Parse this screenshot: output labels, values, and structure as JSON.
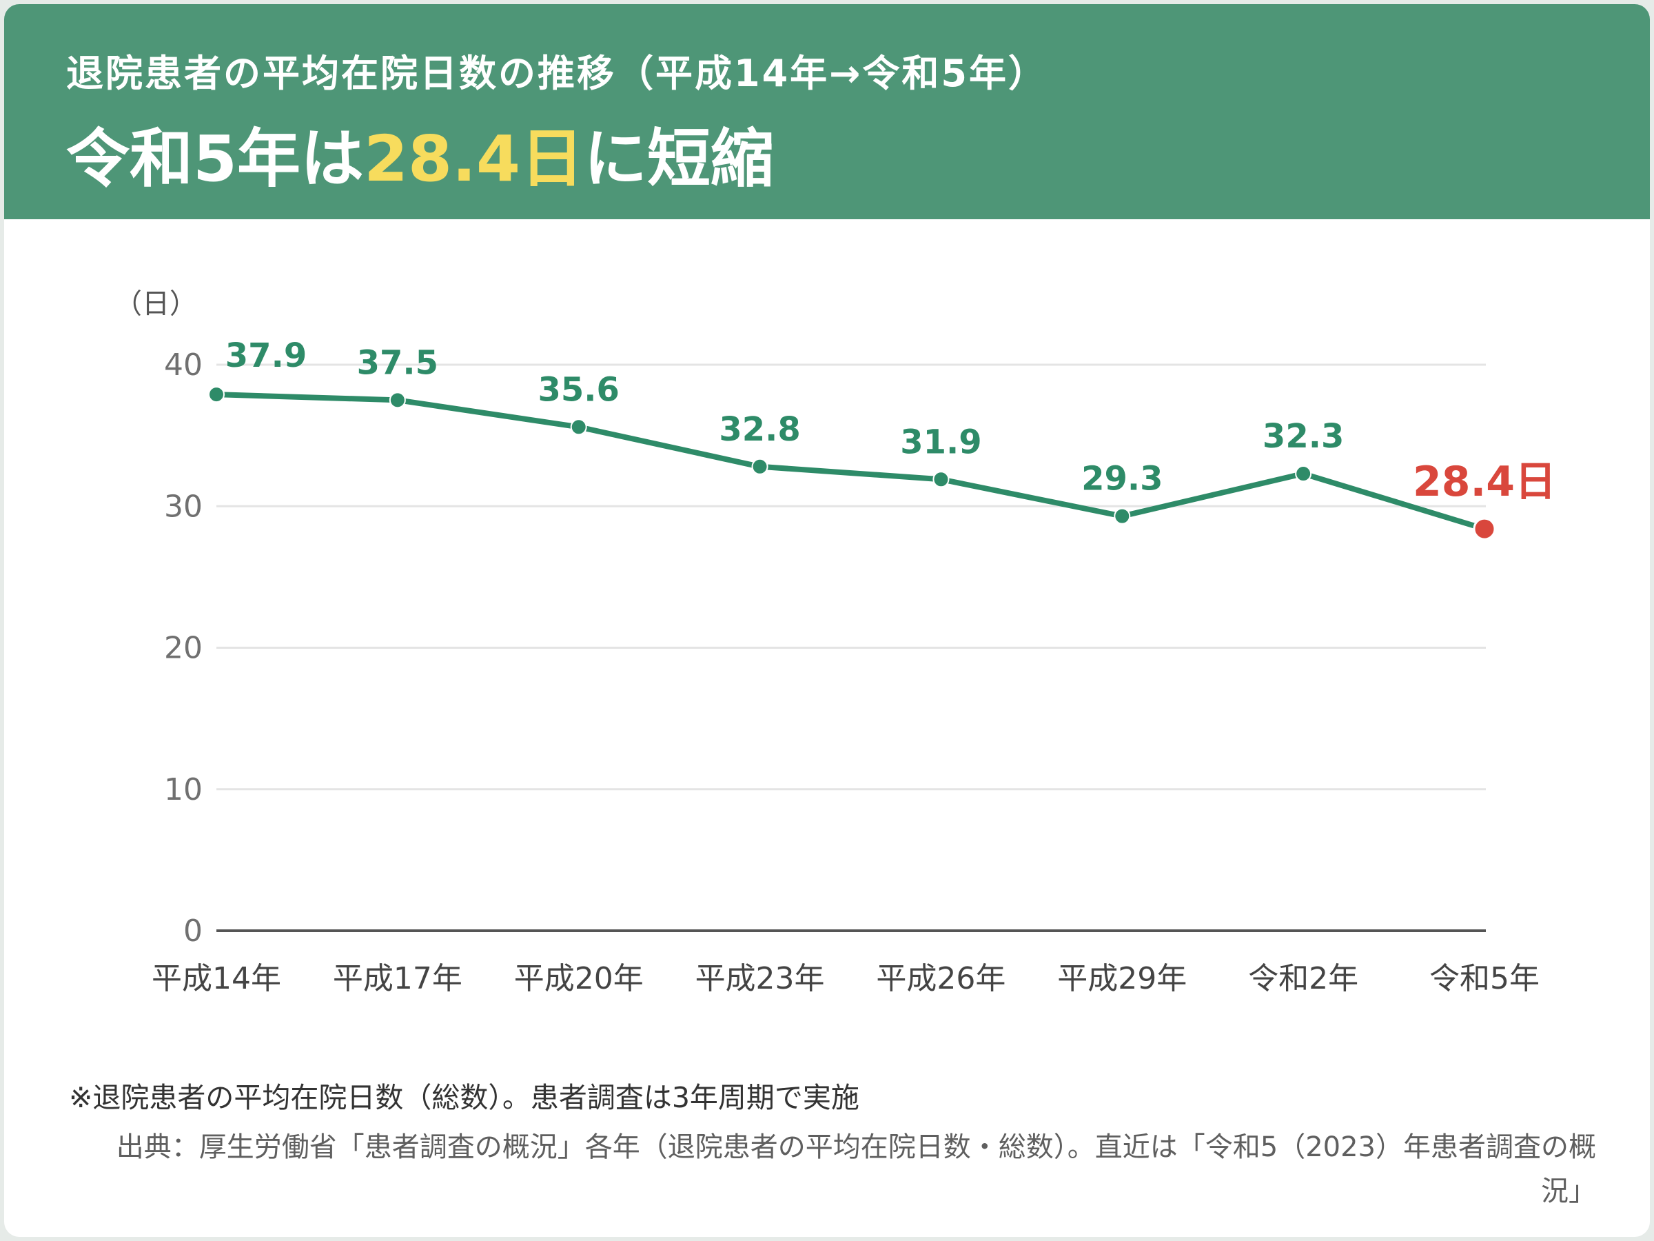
{
  "header": {
    "subtitle": "退院患者の平均在院日数の推移（平成14年→令和5年）",
    "headline_pre": "令和5年は",
    "headline_highlight": "28.4日",
    "headline_post": "に短縮"
  },
  "chart_data": {
    "type": "line",
    "unit_label": "（日）",
    "categories": [
      "平成14年",
      "平成17年",
      "平成20年",
      "平成23年",
      "平成26年",
      "平成29年",
      "令和2年",
      "令和5年"
    ],
    "values": [
      37.9,
      37.5,
      35.6,
      32.8,
      31.9,
      29.3,
      32.3,
      28.4
    ],
    "data_labels": [
      "37.9",
      "37.5",
      "35.6",
      "32.8",
      "31.9",
      "29.3",
      "32.3",
      "28.4日"
    ],
    "ylim": [
      0,
      40
    ],
    "yticks": [
      0,
      10,
      20,
      30,
      40
    ],
    "grid": true,
    "line_color": "#2e8b68",
    "highlight_color": "#d9473c",
    "highlight_index": 7
  },
  "footer": {
    "note": "※退院患者の平均在院日数（総数）。患者調査は3年周期で実施",
    "source": "出典：厚生労働省「患者調査の概況」各年（退院患者の平均在院日数・総数）。直近は「令和5（2023）年患者調査の概況」"
  }
}
